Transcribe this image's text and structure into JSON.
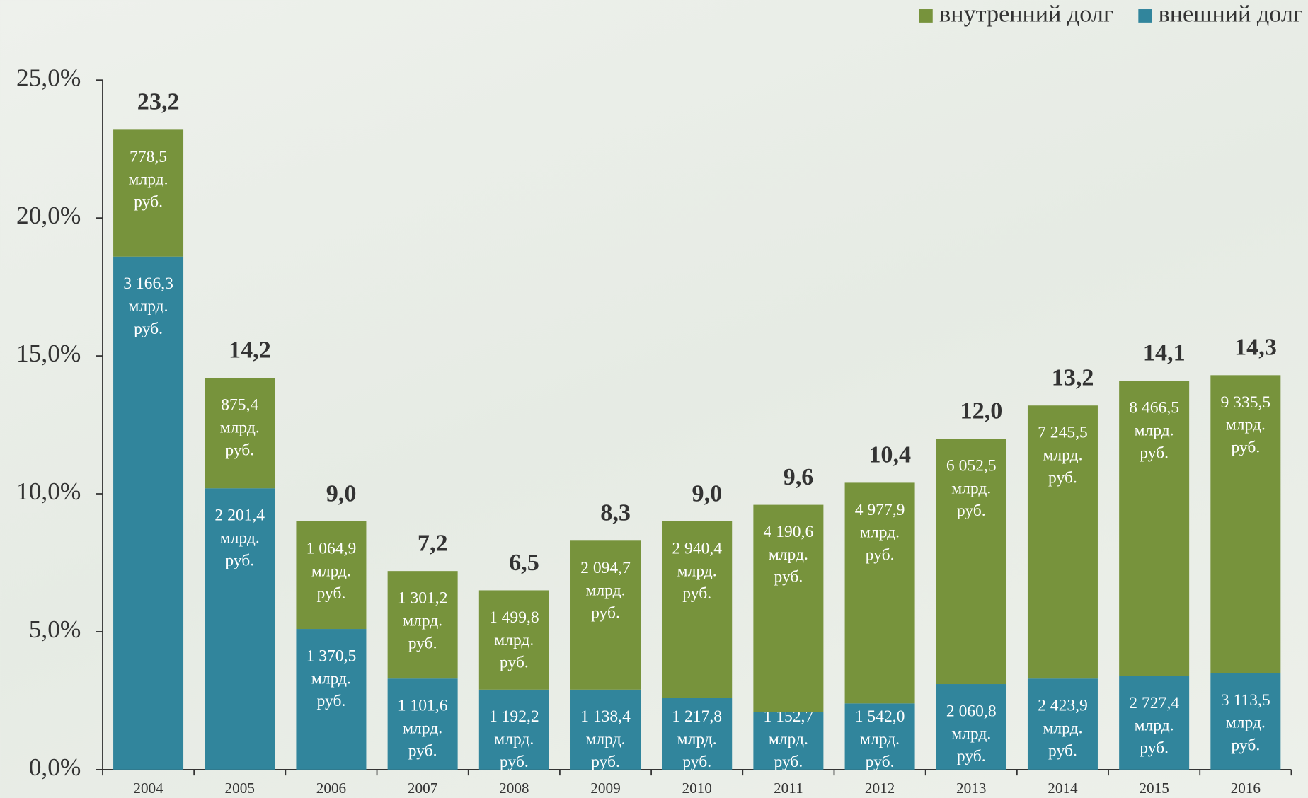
{
  "chart_data": {
    "type": "stacked_bar",
    "categories": [
      "2004",
      "2005",
      "2006",
      "2007",
      "2008",
      "2009",
      "2010",
      "2011",
      "2012",
      "2013",
      "2014",
      "2015",
      "2016"
    ],
    "series": [
      {
        "name": "внешний долг",
        "color": "#31859c",
        "values": [
          18.6,
          10.2,
          5.1,
          3.3,
          2.9,
          2.9,
          2.6,
          2.1,
          2.4,
          3.1,
          3.3,
          3.4,
          3.5
        ],
        "amount_labels": [
          "3 166,3",
          "2 201,4",
          "1 370,5",
          "1 101,6",
          "1 192,2",
          "1 138,4",
          "1 217,8",
          "1 152,7",
          "1 542,0",
          "2 060,8",
          "2 423,9",
          "2 727,4",
          "3 113,5"
        ]
      },
      {
        "name": "внутренний долг",
        "color": "#77933c",
        "values": [
          4.6,
          4.0,
          3.9,
          3.9,
          3.6,
          5.4,
          6.4,
          7.5,
          8.0,
          8.9,
          9.9,
          10.7,
          10.8
        ],
        "amount_labels": [
          "778,5",
          "875,4",
          "1 064,9",
          "1 301,2",
          "1 499,8",
          "2 094,7",
          "2 940,4",
          "4 190,6",
          "4 977,9",
          "6 052,5",
          "7 245,5",
          "8 466,5",
          "9 335,5"
        ]
      }
    ],
    "unit_lines": [
      "млрд.",
      "руб."
    ],
    "total_labels": [
      "23,2",
      "14,2",
      "9,0",
      "7,2",
      "6,5",
      "8,3",
      "9,0",
      "9,6",
      "10,4",
      "12,0",
      "13,2",
      "14,1",
      "14,3"
    ],
    "ylim": [
      0,
      25
    ],
    "yticks": [
      {
        "value": 0,
        "label": "0,0%"
      },
      {
        "value": 5,
        "label": "5,0%"
      },
      {
        "value": 10,
        "label": "10,0%"
      },
      {
        "value": 15,
        "label": "15,0%"
      },
      {
        "value": 20,
        "label": "20,0%"
      },
      {
        "value": 25,
        "label": "25,0%"
      }
    ],
    "legend": "top-right"
  }
}
